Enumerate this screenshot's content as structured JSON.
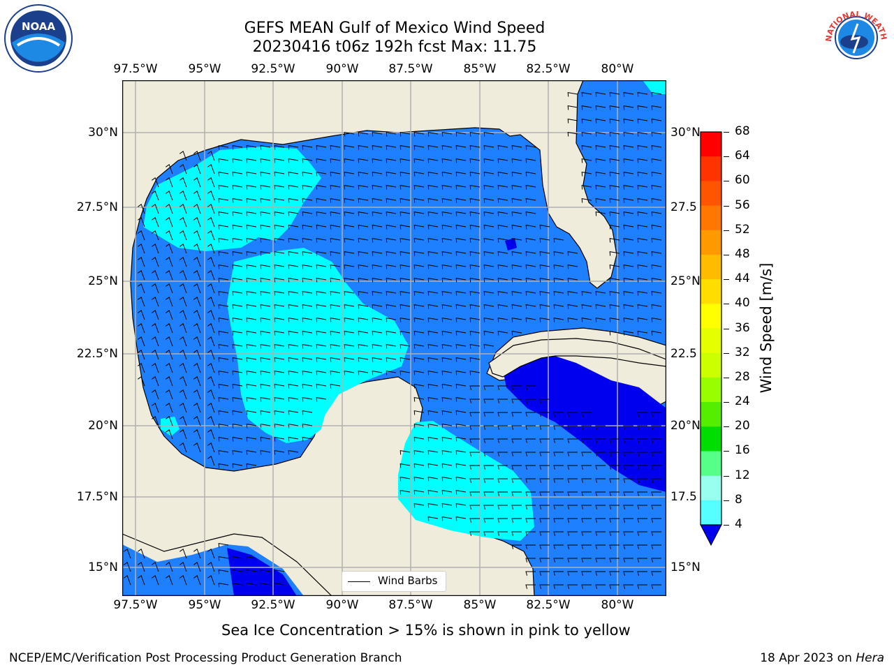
{
  "header": {
    "title_line1": "GEFS MEAN Gulf of Mexico Wind Speed",
    "title_line2": "20230416 t06z 192h fcst   Max: 11.75"
  },
  "logos": {
    "left": "NOAA",
    "right": "NATIONAL WEATHER SERVICE"
  },
  "map": {
    "lon_labels": [
      "97.5°W",
      "95°W",
      "92.5°W",
      "90°W",
      "87.5°W",
      "85°W",
      "82.5°W",
      "80°W"
    ],
    "lat_labels": [
      "30°N",
      "27.5°N",
      "25°N",
      "22.5°N",
      "20°N",
      "17.5°N",
      "15°N"
    ],
    "lat_labels_right": [
      "30°N",
      "27.5",
      "25°N",
      "22.5",
      "20°N",
      "17.5",
      "15°N"
    ],
    "legend_label": "Wind Barbs",
    "colors": {
      "land": "#efecdc",
      "ocean_low": "#1e7fff",
      "ocean_mid": "#00ffff",
      "ocean_deep": "#0000ee"
    }
  },
  "colorbar": {
    "label": "Wind Speed [m/s]",
    "ticks": [
      "68",
      "64",
      "60",
      "56",
      "52",
      "48",
      "44",
      "40",
      "36",
      "32",
      "28",
      "24",
      "20",
      "16",
      "12",
      "8",
      "4"
    ],
    "colors": [
      "#ff0000",
      "#ff3300",
      "#ff5500",
      "#ff7700",
      "#ff9900",
      "#ffbb00",
      "#ffdd00",
      "#ffff00",
      "#e6ff00",
      "#ccff00",
      "#99ff00",
      "#55ee00",
      "#00dd00",
      "#55ff88",
      "#99ffee",
      "#55ffff",
      "#00ffff",
      "#1e7fff"
    ]
  },
  "caption": "Sea Ice Concentration > 15% is shown in pink to yellow",
  "footer": {
    "left": "NCEP/EMC/Verification Post Processing Product Generation Branch",
    "date": "18 Apr 2023 on ",
    "machine": "Hera"
  }
}
